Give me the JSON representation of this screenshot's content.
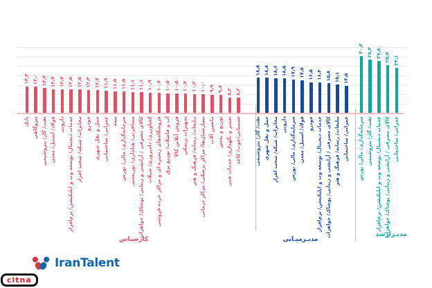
{
  "chart_data": {
    "type": "bar",
    "title": "",
    "ylim": [
      0,
      35
    ],
    "gridline_step": 5,
    "unit": "",
    "groups": [
      {
        "label": "کارشناس",
        "color": "#e25065",
        "categories": [
          "بانک",
          "نیروگاهی",
          "نفت/ گاز/ پتروشیمی",
          "فولاد/ استیل/ معدن",
          "دارویی",
          "خدمات دیجیتال/ توسعه وب و اپلیکیشن/ نرم‌افزار",
          "مخابرات/ شبکه/ سخت افزار",
          "خودرو",
          "حمل و نقل شهری",
          "عمرانی/ ساختمانی",
          "بیمه",
          "سرمایه‌گذاری/ مالی/ بورس",
          "مسافرتی/ هتلداری/ توریستی",
          "کالای مصرفی / آرایشی و زیبایی/ پوشاک/ جواهرات",
          "کشاورزی/ دامپروری/ شیلات",
          "فروشگاه‌های زنجیره ای و مراکز خرده فروشی",
          "آب و فاضلاب/ توزیع برق",
          "فروش آنلاین کالا",
          "تجهیزات پزشکی",
          "تبلیغات/ رسانه/ فرهنگ و هنر",
          "بیمارستان‌ها/ مراکز پزشکی/ مراکز درمانی",
          "ماشین آلات",
          "توزیع و پخش",
          "تعمیر و نگهداری/ خدمات فنی",
          "شیمیایی/چوب/ کاغذ"
        ],
        "values": [
          14.3,
          14.0,
          13.4,
          12.7,
          12.7,
          12.5,
          12.5,
          12.4,
          12.2,
          11.9,
          11.5,
          11.5,
          11.1,
          11.1,
          10.9,
          10.7,
          10.5,
          10.5,
          10.4,
          10.2,
          10.0,
          9.9,
          9.6,
          8.2,
          8.2
        ],
        "value_labels": [
          "۱۴٫۳",
          "۱۴٫۰",
          "۱۳٫۴",
          "۱۲٫۷",
          "۱۲٫۷",
          "۱۲٫۵",
          "۱۲٫۵",
          "۱۲٫۴",
          "۱۲٫۲",
          "۱۱٫۹",
          "۱۱٫۵",
          "۱۱٫۵",
          "۱۱٫۱",
          "۱۱٫۱",
          "۱۰٫۹",
          "۱۰٫۷",
          "۱۰٫۵",
          "۱۰٫۵",
          "۱۰٫۴",
          "۱۰٫۲",
          "۱۰٫۰",
          "۹٫۹",
          "۹٫۶",
          "۸٫۲",
          "۸٫۲"
        ]
      },
      {
        "label": "مدیـرمیـانی",
        "color": "#17499c",
        "categories": [
          "نفت/ گاز/ پتروشیمی",
          "حمل و نقل شهری",
          "مخابرات/ شبکه/ سخت افزار",
          "دارویی",
          "سرمایه‌گذاری/ مالی/ بورس",
          "فولاد/ استیل/ معدن",
          "خودرو",
          "خدمات دیجیتال/ توسعه وب و اپلیکیشن/ نرم‌افزار",
          "کالای مصرفی / آرایشی و زیبایی/ پوشاک/ جواهرات",
          "تبلیغات/ رسانه/ فرهنگ و هنر",
          "عمرانی/ ساختمانی"
        ],
        "values": [
          18.8,
          18.8,
          18.6,
          18.5,
          17.9,
          17.5,
          16.5,
          16.4,
          15.8,
          15.1,
          14.5
        ],
        "value_labels": [
          "۱۸٫۸",
          "۱۸٫۸",
          "۱۸٫۶",
          "۱۸٫۵",
          "۱۷٫۹",
          "۱۷٫۵",
          "۱۶٫۵",
          "۱۶٫۴",
          "۱۵٫۸",
          "۱۵٫۱",
          "۱۴٫۵"
        ]
      },
      {
        "label": "مدیـرارشد",
        "color": "#0ea79b",
        "categories": [
          "سرمایه‌گذاری/ مالی/ بورس",
          "نفت/ گاز/ پتروشیمی",
          "خدمات دیجیتال/ توسعه وب و اپلیکیشن/ نرم‌افزار",
          "کالای مصرفی / آرایشی و زیبایی/ پوشاک/ جواهرات",
          "عمرانی/ ساختمانی"
        ],
        "values": [
          30.3,
          28.3,
          27.8,
          25.7,
          24.1
        ],
        "value_labels": [
          "۳۰٫۳",
          "۲۸٫۳",
          "۲۷٫۸",
          "۲۵٫۷",
          "۲۴٫۱"
        ]
      }
    ]
  },
  "branding": {
    "irantalent_wordmark": "IranTalent",
    "citna_wordmark": "citna"
  }
}
